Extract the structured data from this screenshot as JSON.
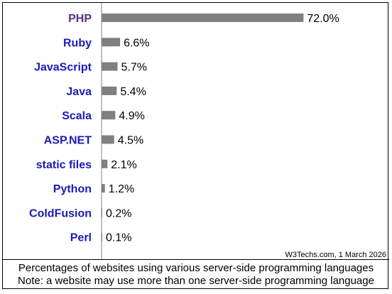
{
  "chart_data": {
    "type": "bar",
    "orientation": "horizontal",
    "categories": [
      "PHP",
      "Ruby",
      "JavaScript",
      "Java",
      "Scala",
      "ASP.NET",
      "static files",
      "Python",
      "ColdFusion",
      "Perl"
    ],
    "values": [
      72.0,
      6.6,
      5.7,
      5.4,
      4.9,
      4.5,
      2.1,
      1.2,
      0.2,
      0.1
    ],
    "value_labels": [
      "72.0%",
      "6.6%",
      "5.7%",
      "5.4%",
      "4.9%",
      "4.5%",
      "2.1%",
      "1.2%",
      "0.2%",
      "0.1%"
    ],
    "xlim": [
      0,
      100
    ],
    "grid": false,
    "colors": {
      "bar": "#808080",
      "highlight_label": "#5b2c8a",
      "label": "#1a1ab8",
      "axis": "#808080"
    },
    "highlight_category": "PHP",
    "source": "W3Techs.com, 1 March 2026"
  },
  "caption": {
    "line1": "Percentages of websites using various server-side programming languages",
    "line2": "Note: a website may use more than one server-side programming language"
  }
}
